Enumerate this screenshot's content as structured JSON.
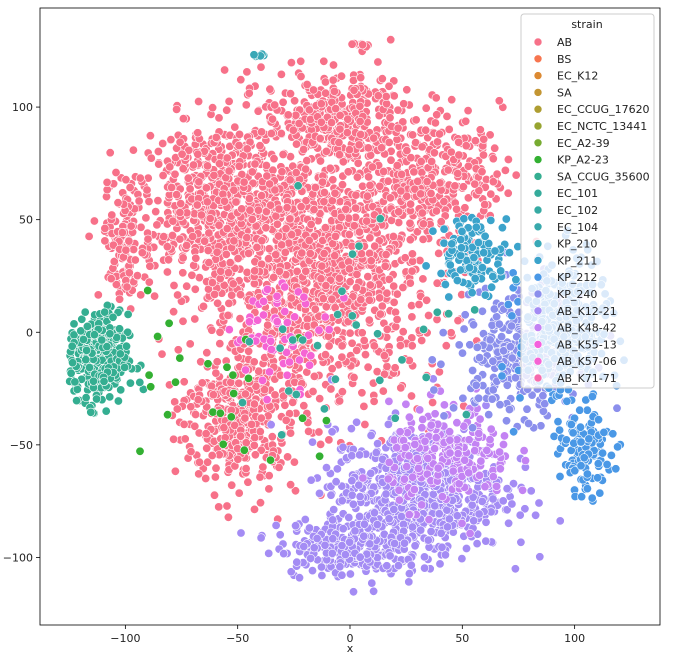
{
  "chart_data": {
    "type": "scatter",
    "title": "",
    "xlabel": "x",
    "ylabel": "",
    "xlim": [
      -138,
      138
    ],
    "ylim": [
      -130,
      144
    ],
    "xticks": [
      -100,
      -50,
      0,
      50,
      100
    ],
    "yticks": [
      -100,
      -50,
      0,
      50,
      100
    ],
    "grid": false,
    "legend": {
      "title": "strain",
      "placement": "top-right",
      "entries": [
        {
          "name": "AB",
          "color": "#f77189"
        },
        {
          "name": "BS",
          "color": "#f7754f"
        },
        {
          "name": "EC_K12",
          "color": "#dc8932"
        },
        {
          "name": "SA",
          "color": "#c39532"
        },
        {
          "name": "EC_CCUG_17620",
          "color": "#ae9d31"
        },
        {
          "name": "EC_NCTC_13441",
          "color": "#97a431"
        },
        {
          "name": "EC_A2-39",
          "color": "#77ab31"
        },
        {
          "name": "KP_A2-23",
          "color": "#33b032"
        },
        {
          "name": "SA_CCUG_35600",
          "color": "#34ae91"
        },
        {
          "name": "EC_101",
          "color": "#35ab9b"
        },
        {
          "name": "EC_102",
          "color": "#37aaa3"
        },
        {
          "name": "EC_104",
          "color": "#38a9ac"
        },
        {
          "name": "KP_210",
          "color": "#3aa8b6"
        },
        {
          "name": "KP_211",
          "color": "#3ba3cb"
        },
        {
          "name": "KP_212",
          "color": "#4a98e6"
        },
        {
          "name": "KP_240",
          "color": "#8b8fec"
        },
        {
          "name": "AB_K12-21",
          "color": "#a48cf4"
        },
        {
          "name": "AB_K48-42",
          "color": "#c383f3"
        },
        {
          "name": "AB_K55-13",
          "color": "#f461dd"
        },
        {
          "name": "AB_K57-06",
          "color": "#f564d4"
        },
        {
          "name": "AB_K71-71",
          "color": "#f66bad"
        }
      ]
    },
    "clusters": [
      {
        "series": "AB",
        "center": [
          -15,
          30
        ],
        "spread": [
          50,
          55
        ],
        "count": 1500
      },
      {
        "series": "AB",
        "center": [
          -60,
          60
        ],
        "spread": [
          28,
          30
        ],
        "count": 500
      },
      {
        "series": "AB",
        "center": [
          -50,
          -40
        ],
        "spread": [
          22,
          28
        ],
        "count": 350
      },
      {
        "series": "AB",
        "center": [
          -5,
          95
        ],
        "spread": [
          30,
          18
        ],
        "count": 300
      },
      {
        "series": "AB",
        "center": [
          40,
          70
        ],
        "spread": [
          25,
          25
        ],
        "count": 260
      },
      {
        "series": "AB",
        "center": [
          -100,
          40
        ],
        "spread": [
          10,
          25
        ],
        "count": 140
      },
      {
        "series": "SA_CCUG_35600",
        "center": [
          -112,
          -12
        ],
        "spread": [
          12,
          18
        ],
        "count": 380
      },
      {
        "series": "AB_K12-21",
        "center": [
          30,
          -70
        ],
        "spread": [
          35,
          25
        ],
        "count": 700
      },
      {
        "series": "AB_K12-21",
        "center": [
          0,
          -95
        ],
        "spread": [
          30,
          12
        ],
        "count": 250
      },
      {
        "series": "AB_K48-42",
        "center": [
          45,
          -55
        ],
        "spread": [
          25,
          20
        ],
        "count": 220
      },
      {
        "series": "KP_240",
        "center": [
          75,
          -10
        ],
        "spread": [
          25,
          25
        ],
        "count": 300
      },
      {
        "series": "KP_212",
        "center": [
          95,
          0
        ],
        "spread": [
          18,
          30
        ],
        "count": 350
      },
      {
        "series": "KP_212",
        "center": [
          105,
          -55
        ],
        "spread": [
          10,
          15
        ],
        "count": 120
      },
      {
        "series": "KP_211",
        "center": [
          55,
          35
        ],
        "spread": [
          15,
          15
        ],
        "count": 120
      },
      {
        "series": "AB_K57-06",
        "center": [
          -30,
          0
        ],
        "spread": [
          20,
          20
        ],
        "count": 60
      },
      {
        "series": "KP_A2-23",
        "center": [
          -60,
          -20
        ],
        "spread": [
          40,
          40
        ],
        "count": 25
      },
      {
        "series": "EC_101",
        "center": [
          0,
          0
        ],
        "spread": [
          50,
          50
        ],
        "count": 30
      },
      {
        "series": "KP_210",
        "center": [
          -40,
          123
        ],
        "spread": [
          3,
          1
        ],
        "count": 8
      },
      {
        "series": "AB",
        "center": [
          5,
          128
        ],
        "spread": [
          4,
          2
        ],
        "count": 10
      }
    ]
  }
}
